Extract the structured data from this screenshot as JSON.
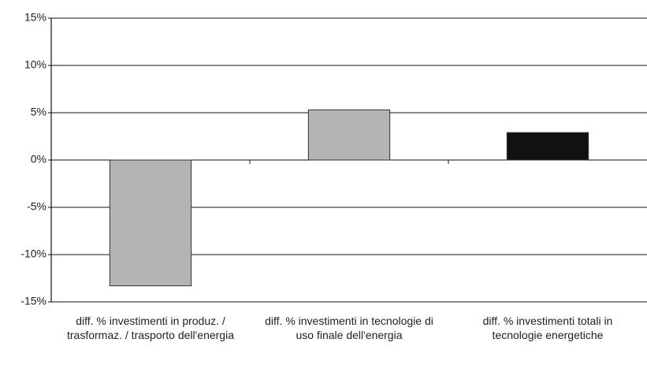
{
  "chart_data": {
    "type": "bar",
    "categories": [
      "diff. % investimenti in produz. / trasformaz. / trasporto dell'energia",
      "diff. % investimenti in tecnologie di uso finale dell'energia",
      "diff. % investimenti totali in tecnologie energetiche"
    ],
    "values": [
      -13.3,
      5.3,
      2.9
    ],
    "colors": [
      "#b4b4b4",
      "#b4b4b4",
      "#111111"
    ],
    "ylim": [
      -15,
      15
    ],
    "yticks": [
      {
        "value": -15,
        "label": "-15%"
      },
      {
        "value": -10,
        "label": "-10%"
      },
      {
        "value": -5,
        "label": "-5%"
      },
      {
        "value": 0,
        "label": "0%"
      },
      {
        "value": 5,
        "label": "5%"
      },
      {
        "value": 10,
        "label": "10%"
      },
      {
        "value": 15,
        "label": "15%"
      }
    ],
    "grid": true
  }
}
